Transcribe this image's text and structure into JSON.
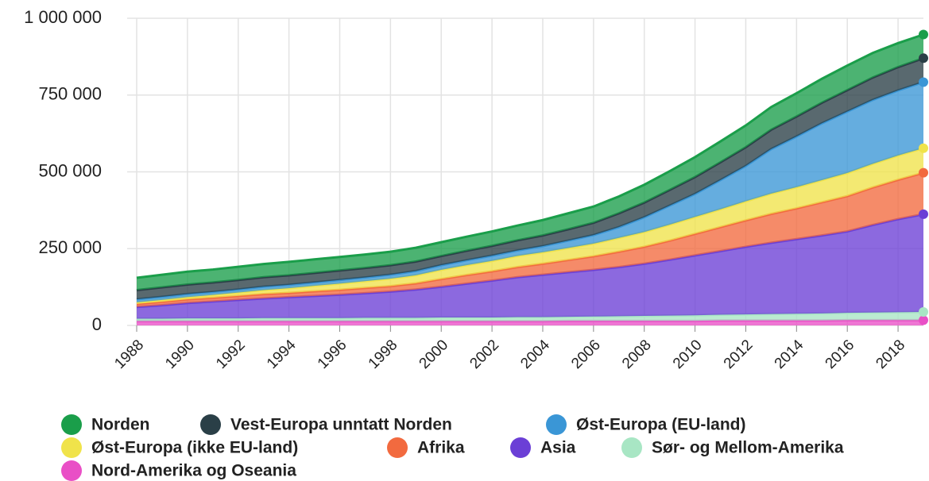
{
  "chart_data": {
    "type": "stacked_area",
    "x": [
      1988,
      1989,
      1990,
      1991,
      1992,
      1993,
      1994,
      1995,
      1996,
      1997,
      1998,
      1999,
      2000,
      2001,
      2002,
      2003,
      2004,
      2005,
      2006,
      2007,
      2008,
      2009,
      2010,
      2011,
      2012,
      2013,
      2014,
      2015,
      2016,
      2017,
      2018,
      2019
    ],
    "xlim": [
      1988,
      2019
    ],
    "xticks": [
      1988,
      1990,
      1992,
      1994,
      1996,
      1998,
      2000,
      2002,
      2004,
      2006,
      2008,
      2010,
      2012,
      2014,
      2016,
      2018
    ],
    "ylim": [
      0,
      1000000
    ],
    "yticks": [
      0,
      {
        "value": 250000,
        "label": "250 000"
      },
      {
        "value": 500000,
        "label": "500 000"
      },
      {
        "value": 750000,
        "label": "750 000"
      },
      {
        "value": 1000000,
        "label": "1 000 000"
      }
    ],
    "grid": true,
    "legend": "bottom",
    "series": [
      {
        "name": "Nord-Amerika og Oseania",
        "color": "#e94fc6",
        "values": [
          14000,
          14000,
          14000,
          14000,
          14000,
          14000,
          14000,
          14000,
          14000,
          14000,
          14000,
          14000,
          14000,
          14000,
          14000,
          14000,
          14000,
          15000,
          15000,
          15000,
          15000,
          15000,
          15000,
          16000,
          16000,
          16000,
          16000,
          16000,
          17000,
          17000,
          17000,
          17000
        ]
      },
      {
        "name": "Sør- og Mellom-Amerika",
        "color": "#a8e6c4",
        "values": [
          8000,
          8000,
          9000,
          9000,
          9000,
          10000,
          10000,
          10000,
          10000,
          11000,
          11000,
          11000,
          12000,
          12000,
          12000,
          13000,
          13000,
          13000,
          14000,
          15000,
          16000,
          17000,
          18000,
          19000,
          20000,
          21000,
          22000,
          23000,
          24000,
          25000,
          26000,
          27000
        ]
      },
      {
        "name": "Asia",
        "color": "#6b3fd6",
        "values": [
          38000,
          44000,
          50000,
          55000,
          60000,
          64000,
          68000,
          72000,
          76000,
          80000,
          85000,
          92000,
          100000,
          110000,
          120000,
          130000,
          138000,
          145000,
          152000,
          160000,
          170000,
          182000,
          195000,
          207000,
          220000,
          232000,
          243000,
          254000,
          265000,
          285000,
          303000,
          318000
        ]
      },
      {
        "name": "Afrika",
        "color": "#f26a3f",
        "values": [
          10000,
          11000,
          12000,
          12000,
          13000,
          14000,
          14000,
          15000,
          16000,
          17000,
          18000,
          20000,
          25000,
          28000,
          30000,
          33000,
          36000,
          40000,
          44000,
          50000,
          55000,
          62000,
          70000,
          78000,
          86000,
          94000,
          100000,
          108000,
          115000,
          122000,
          128000,
          135000
        ]
      },
      {
        "name": "Øst-Europa (ikke EU-land)",
        "color": "#f0e34a",
        "values": [
          5000,
          6000,
          7000,
          9000,
          11000,
          13000,
          15000,
          18000,
          20000,
          22000,
          24000,
          26000,
          30000,
          32000,
          34000,
          36000,
          37000,
          39000,
          41000,
          45000,
          48000,
          52000,
          55000,
          58000,
          62000,
          66000,
          69000,
          72000,
          75000,
          77000,
          79000,
          80000
        ]
      },
      {
        "name": "Øst-Europa (EU-land)",
        "color": "#3a96d6",
        "values": [
          10000,
          10000,
          10000,
          10000,
          10000,
          11000,
          11000,
          11000,
          12000,
          12000,
          13000,
          14000,
          15000,
          16000,
          17000,
          18000,
          20000,
          24000,
          28000,
          35000,
          48000,
          62000,
          75000,
          95000,
          115000,
          145000,
          165000,
          185000,
          200000,
          208000,
          212000,
          215000
        ]
      },
      {
        "name": "Vest-Europa unntatt Norden",
        "color": "#2a3f47",
        "values": [
          30000,
          31000,
          31000,
          31000,
          31000,
          31000,
          31000,
          31000,
          31000,
          31000,
          31000,
          31000,
          30000,
          31000,
          32000,
          33000,
          35000,
          37000,
          40000,
          45000,
          48000,
          51000,
          55000,
          58000,
          61000,
          63000,
          65000,
          67000,
          70000,
          73000,
          76000,
          78000
        ]
      },
      {
        "name": "Norden",
        "color": "#1a9e4a",
        "values": [
          40000,
          41000,
          42000,
          42000,
          43000,
          43000,
          44000,
          44000,
          44000,
          44000,
          44000,
          45000,
          45000,
          46000,
          47000,
          48000,
          50000,
          52000,
          53000,
          55000,
          58000,
          61000,
          65000,
          68000,
          71000,
          74000,
          76000,
          78000,
          80000,
          80000,
          78000,
          77000
        ]
      }
    ]
  }
}
